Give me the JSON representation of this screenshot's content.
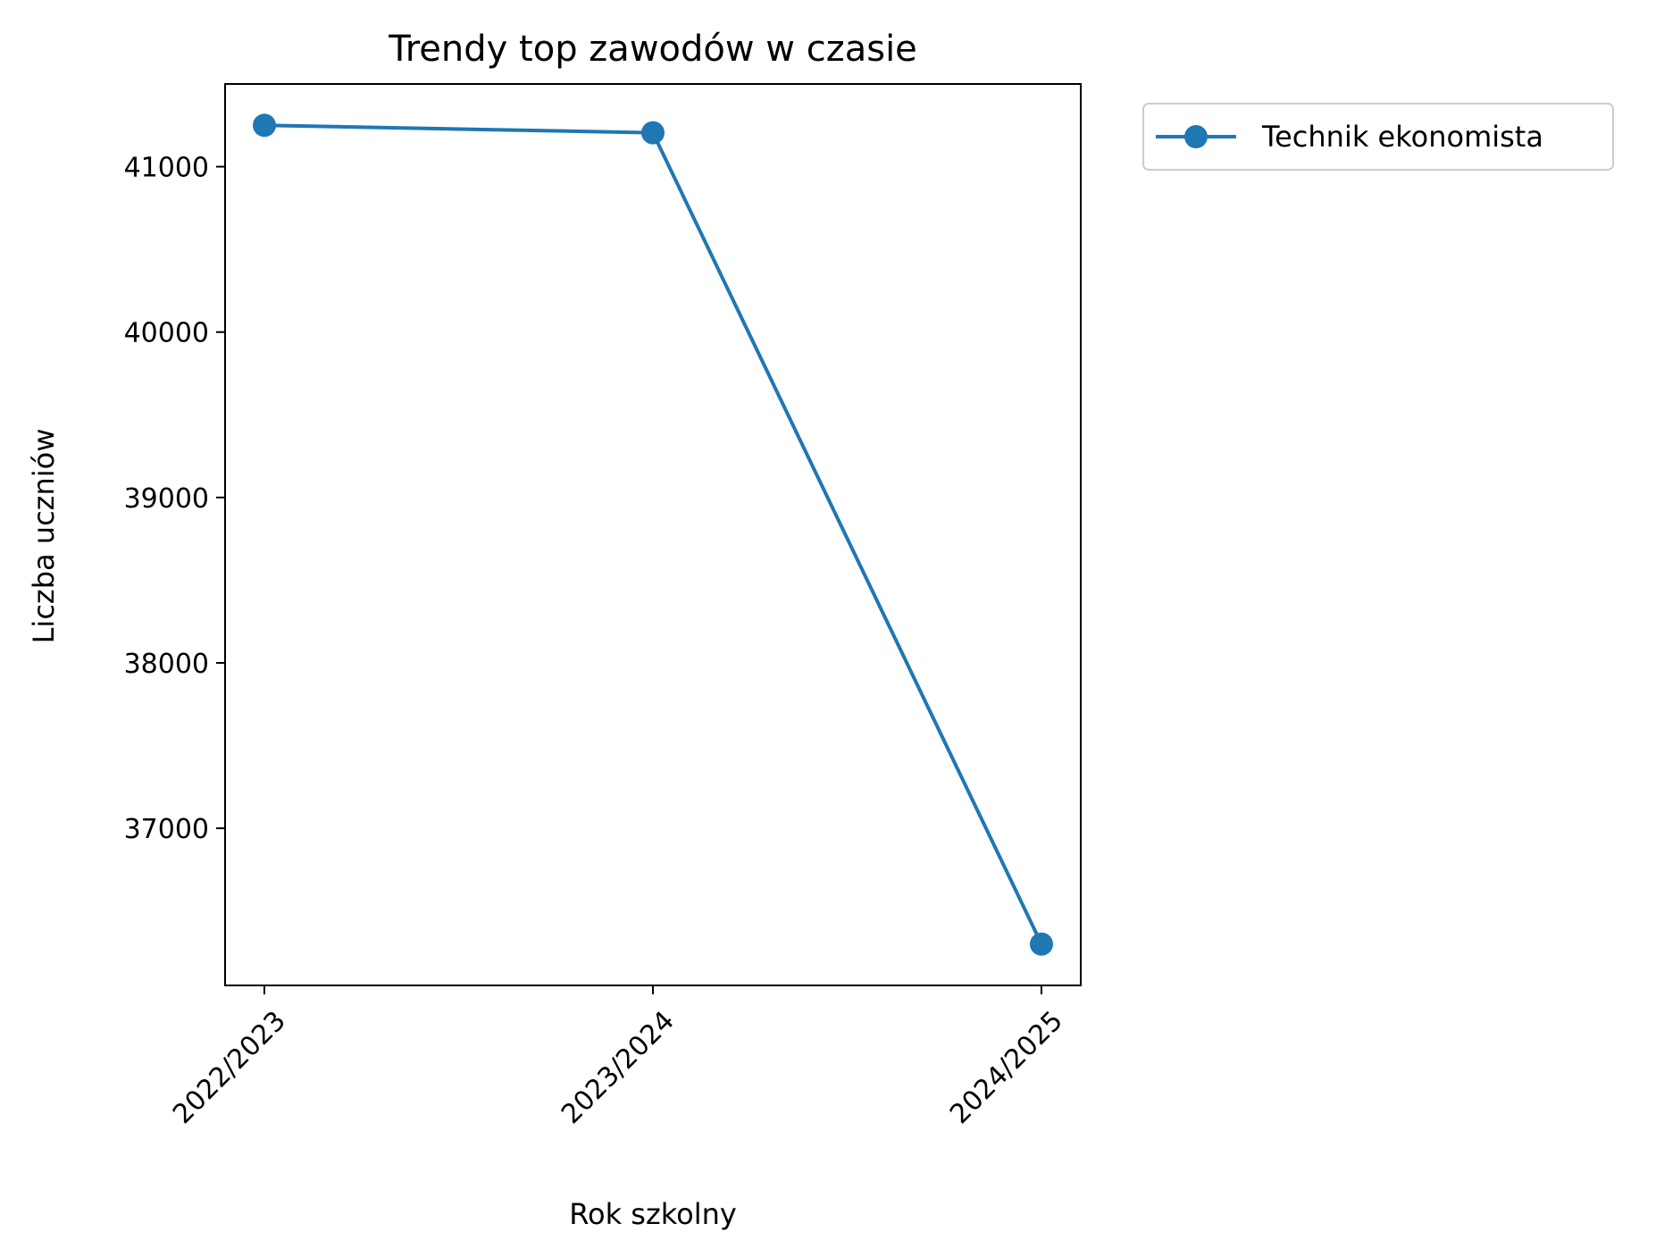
{
  "chart_data": {
    "type": "line",
    "title": "Trendy top zawodów w czasie",
    "xlabel": "Rok szkolny",
    "ylabel": "Liczba uczniów",
    "categories": [
      "2022/2023",
      "2023/2024",
      "2024/2025"
    ],
    "series": [
      {
        "name": "Technik ekonomista",
        "values": [
          41250,
          41205,
          36300
        ],
        "color": "#1f77b4"
      }
    ],
    "yticks": [
      37000,
      38000,
      39000,
      40000,
      41000
    ],
    "ylim": [
      36050,
      41500
    ],
    "grid": false,
    "legend_position": "outside-top-right",
    "marker": "circle"
  }
}
